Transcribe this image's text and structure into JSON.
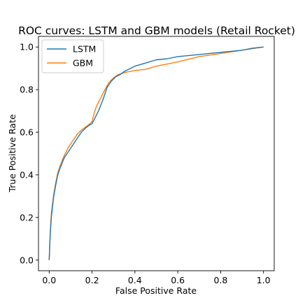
{
  "chart_data": {
    "type": "line",
    "title": "ROC curves: LSTM and GBM models (Retail Rocket)",
    "xlabel": "False Positive Rate",
    "ylabel": "True Positive Rate",
    "xlim": [
      -0.05,
      1.05
    ],
    "ylim": [
      -0.05,
      1.05
    ],
    "xticks": [
      0.0,
      0.2,
      0.4,
      0.6,
      0.8,
      1.0
    ],
    "yticks": [
      0.0,
      0.2,
      0.4,
      0.6,
      0.8,
      1.0
    ],
    "xtick_labels": [
      "0.0",
      "0.2",
      "0.4",
      "0.6",
      "0.8",
      "1.0"
    ],
    "ytick_labels": [
      "0.0",
      "0.2",
      "0.4",
      "0.6",
      "0.8",
      "1.0"
    ],
    "grid": false,
    "legend_position": "top-left",
    "series": [
      {
        "name": "LSTM",
        "color": "#1f77b4",
        "x": [
          0.0,
          0.005,
          0.01,
          0.02,
          0.03,
          0.04,
          0.05,
          0.07,
          0.09,
          0.11,
          0.13,
          0.15,
          0.17,
          0.19,
          0.2,
          0.21,
          0.23,
          0.25,
          0.27,
          0.29,
          0.31,
          0.33,
          0.35,
          0.4,
          0.45,
          0.5,
          0.55,
          0.6,
          0.7,
          0.8,
          0.9,
          0.95,
          1.0
        ],
        "y": [
          0.0,
          0.12,
          0.2,
          0.29,
          0.35,
          0.4,
          0.43,
          0.48,
          0.51,
          0.54,
          0.57,
          0.6,
          0.62,
          0.635,
          0.64,
          0.66,
          0.7,
          0.75,
          0.81,
          0.84,
          0.86,
          0.87,
          0.885,
          0.91,
          0.925,
          0.94,
          0.945,
          0.955,
          0.965,
          0.975,
          0.985,
          0.995,
          1.0
        ]
      },
      {
        "name": "GBM",
        "color": "#ff7f0e",
        "x": [
          0.0,
          0.005,
          0.01,
          0.02,
          0.03,
          0.04,
          0.05,
          0.07,
          0.09,
          0.11,
          0.13,
          0.15,
          0.17,
          0.19,
          0.2,
          0.21,
          0.22,
          0.24,
          0.26,
          0.28,
          0.3,
          0.32,
          0.35,
          0.4,
          0.45,
          0.5,
          0.55,
          0.6,
          0.7,
          0.8,
          0.9,
          1.0
        ],
        "y": [
          0.0,
          0.13,
          0.22,
          0.3,
          0.36,
          0.41,
          0.44,
          0.49,
          0.53,
          0.56,
          0.59,
          0.61,
          0.625,
          0.64,
          0.65,
          0.69,
          0.72,
          0.76,
          0.8,
          0.835,
          0.855,
          0.87,
          0.88,
          0.89,
          0.895,
          0.91,
          0.92,
          0.93,
          0.955,
          0.97,
          0.985,
          1.0
        ]
      }
    ]
  }
}
